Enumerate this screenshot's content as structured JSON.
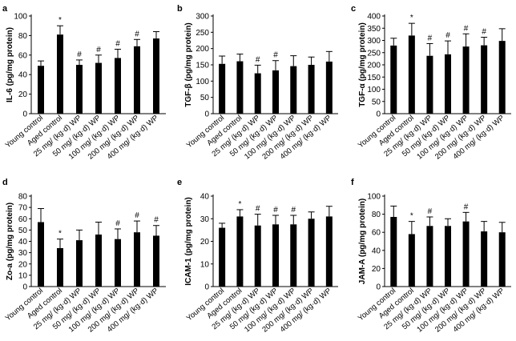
{
  "figure": {
    "categories": [
      "Young control",
      "Aged control",
      "25 mg/ (kg·d) WP",
      "50 mg/ (kg·d) WP",
      "100 mg/ (kg·d) WP",
      "200 mg/ (kg·d) WP",
      "400 mg/ (kg·d) WP"
    ]
  },
  "chart_data": [
    {
      "panel": "a",
      "type": "bar",
      "ylabel": "IL-6 (pg/mg protein)",
      "ylim": [
        0,
        100
      ],
      "yticks": [
        0,
        20,
        40,
        60,
        80,
        100
      ],
      "values": [
        49,
        81,
        50,
        52,
        57,
        69,
        77
      ],
      "errors": [
        5,
        9,
        5,
        8,
        9,
        7,
        7
      ],
      "markers": [
        "",
        "*",
        "#",
        "#",
        "#",
        "#",
        ""
      ]
    },
    {
      "panel": "b",
      "type": "bar",
      "ylabel": "TGF-β (pg/mg protein)",
      "ylim": [
        0,
        300
      ],
      "yticks": [
        0,
        50,
        100,
        150,
        200,
        250,
        300
      ],
      "values": [
        153,
        161,
        124,
        133,
        146,
        150,
        160
      ],
      "errors": [
        24,
        22,
        25,
        30,
        32,
        24,
        31
      ],
      "markers": [
        "",
        "",
        "#",
        "#",
        "",
        "",
        ""
      ]
    },
    {
      "panel": "c",
      "type": "bar",
      "ylabel": "TGF-α (pg/mg protein)",
      "ylim": [
        0,
        400
      ],
      "yticks": [
        0,
        50,
        100,
        150,
        200,
        250,
        300,
        350,
        400
      ],
      "values": [
        279,
        320,
        237,
        243,
        275,
        280,
        298
      ],
      "errors": [
        30,
        50,
        50,
        55,
        52,
        33,
        50
      ],
      "markers": [
        "",
        "*",
        "#",
        "#",
        "#",
        "#",
        ""
      ]
    },
    {
      "panel": "d",
      "type": "bar",
      "ylabel": "Zo-a (pg/mg protein)",
      "ylim": [
        0,
        80
      ],
      "yticks": [
        0,
        10,
        20,
        30,
        40,
        50,
        60,
        70,
        80
      ],
      "values": [
        57,
        34,
        41,
        46,
        42,
        48,
        45
      ],
      "errors": [
        12,
        8,
        9,
        11,
        9,
        10,
        9
      ],
      "markers": [
        "",
        "*",
        "",
        "",
        "#",
        "#",
        "#"
      ]
    },
    {
      "panel": "e",
      "type": "bar",
      "ylabel": "ICAM-1 (pg/mg protein)",
      "ylim": [
        0,
        40
      ],
      "yticks": [
        0,
        10,
        20,
        30,
        40
      ],
      "values": [
        26,
        31,
        27,
        27.5,
        27.5,
        30,
        31
      ],
      "errors": [
        2,
        3,
        5,
        4,
        4,
        3,
        4.5
      ],
      "markers": [
        "",
        "*",
        "#",
        "#",
        "#",
        "",
        ""
      ]
    },
    {
      "panel": "f",
      "type": "bar",
      "ylabel": "JAM-A (pg/mg protein)",
      "ylim": [
        0,
        100
      ],
      "yticks": [
        0,
        20,
        40,
        60,
        80,
        100
      ],
      "values": [
        77,
        58,
        67,
        67,
        72,
        61,
        60
      ],
      "errors": [
        12,
        14,
        10,
        8,
        10,
        11,
        11
      ],
      "markers": [
        "",
        "*",
        "#",
        "",
        "#",
        "",
        ""
      ]
    }
  ]
}
